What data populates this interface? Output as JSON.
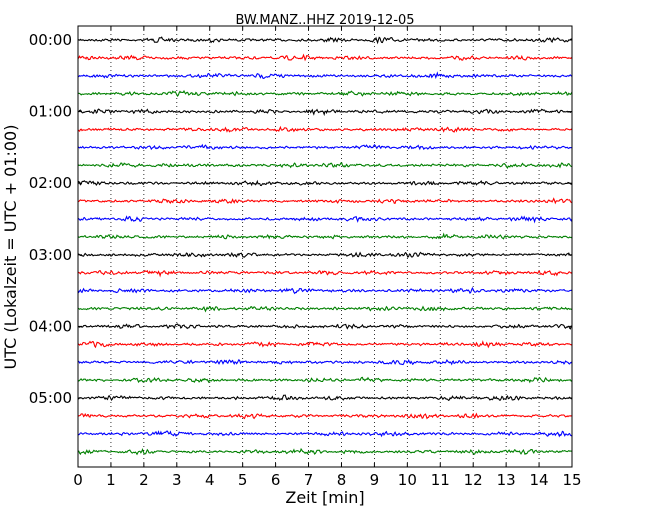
{
  "chart_data": {
    "type": "line",
    "title": "BW.MANZ..HHZ 2019-12-05",
    "xlabel": "Zeit  [min]",
    "ylabel": "UTC (Lokalzeit = UTC + 01:00)",
    "xlim": [
      0,
      15
    ],
    "xticks": [
      0,
      1,
      2,
      3,
      4,
      5,
      6,
      7,
      8,
      9,
      10,
      11,
      12,
      13,
      14,
      15
    ],
    "ylim": [
      "00:00",
      "06:00"
    ],
    "ytick_labels": [
      "00:00",
      "01:00",
      "02:00",
      "03:00",
      "04:00",
      "05:00"
    ],
    "vertical_grid": true,
    "trace_interval_minutes": 15,
    "trace_count": 24,
    "color_cycle": [
      "#000000",
      "#ff0000",
      "#0000ff",
      "#008000"
    ]
  }
}
